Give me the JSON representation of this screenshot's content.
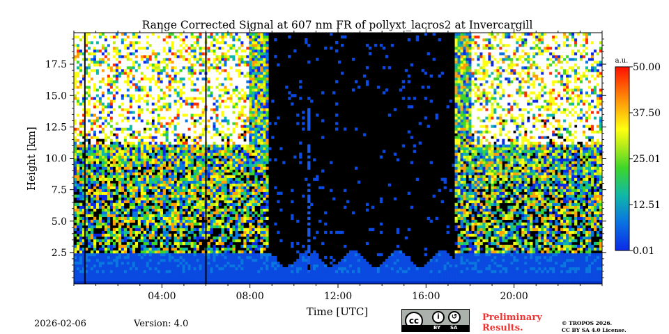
{
  "chart_data": {
    "type": "heatmap",
    "title": "Range Corrected Signal at 607 nm FR of pollyxt_lacros2 at Invercargill",
    "xlabel": "Time [UTC]",
    "ylabel": "Height [km]",
    "xlim": [
      0,
      24
    ],
    "ylim": [
      0,
      20
    ],
    "x_ticks": [
      4,
      8,
      12,
      16,
      20
    ],
    "x_tick_labels": [
      "04:00",
      "08:00",
      "12:00",
      "16:00",
      "20:00"
    ],
    "y_ticks": [
      2.5,
      5.0,
      7.5,
      10.0,
      12.5,
      15.0,
      17.5
    ],
    "y_tick_labels": [
      "2.5",
      "5.0",
      "7.5",
      "10.0",
      "12.5",
      "15.0",
      "17.5"
    ],
    "colorbar": {
      "label": "a.u.",
      "range": [
        0.01,
        50.0
      ],
      "ticks": [
        0.01,
        12.51,
        25.01,
        37.5,
        50.0
      ],
      "tick_labels": [
        "0.01",
        "12.51",
        "25.01",
        "37.50",
        "50.00"
      ]
    },
    "gap_lines_hours": [
      0.5,
      6.0
    ],
    "cloud_free_window_hours": [
      8.8,
      17.3
    ],
    "bright_column_hours": [
      10.6,
      10.8
    ],
    "low_layer_top_km": 2.5,
    "surface_layer_top_km": 1.0
  },
  "footer": {
    "date": "2026-02-06",
    "version": "Version: 4.0",
    "cc_label_by": "BY",
    "cc_label_sa": "SA",
    "preliminary_line1": "Preliminary",
    "preliminary_line2": "Results.",
    "copyright_line1": "© TROPOS 2026.",
    "copyright_line2": "CC BY SA 4.0 License."
  }
}
